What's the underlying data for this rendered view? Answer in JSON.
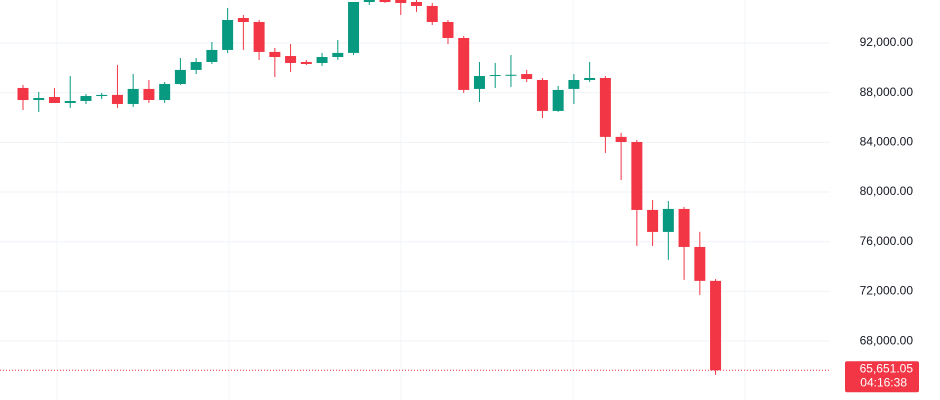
{
  "chart_data": {
    "type": "candlestick",
    "up_color": "#089981",
    "down_color": "#f23645",
    "grid": true,
    "ylim": [
      63260,
      95460
    ],
    "yticks": [
      {
        "value": 68000,
        "label": "68,000.00"
      },
      {
        "value": 72000,
        "label": "72,000.00"
      },
      {
        "value": 76000,
        "label": "76,000.00"
      },
      {
        "value": 80000,
        "label": "80,000.00"
      },
      {
        "value": 84000,
        "label": "84,000.00"
      },
      {
        "value": 88000,
        "label": "88,000.00"
      },
      {
        "value": 92000,
        "label": "92,000.00"
      }
    ],
    "open": [
      88380,
      87410,
      87650,
      87170,
      87330,
      87730,
      87820,
      87090,
      88300,
      87410,
      88700,
      89830,
      90470,
      91440,
      94010,
      93690,
      91280,
      90950,
      90470,
      90390,
      90870,
      91200,
      95300,
      95700,
      95500,
      95300,
      94980,
      93690,
      92400,
      88300,
      89340,
      89420,
      89500,
      89020,
      86530,
      88300,
      89020,
      89180,
      84440,
      84030,
      78560,
      76790,
      78640,
      75580,
      72850
    ],
    "high": [
      88620,
      88060,
      88380,
      89340,
      87900,
      87980,
      90230,
      89500,
      89020,
      88860,
      90790,
      90790,
      92080,
      94820,
      94250,
      93850,
      91600,
      91920,
      90630,
      91200,
      92240,
      95300,
      96200,
      96000,
      96100,
      95700,
      95220,
      93850,
      92560,
      90470,
      90390,
      91030,
      89830,
      89180,
      88540,
      89500,
      90470,
      89340,
      84760,
      84190,
      79360,
      79280,
      78800,
      76800,
      73010
    ],
    "low": [
      86610,
      86450,
      87170,
      86770,
      87090,
      87490,
      86770,
      86850,
      87170,
      87170,
      88620,
      89500,
      90310,
      91200,
      91440,
      90630,
      89260,
      89670,
      90230,
      90150,
      90630,
      91030,
      95060,
      95220,
      94250,
      94500,
      93450,
      91920,
      87980,
      87250,
      88380,
      88460,
      88860,
      85960,
      86450,
      87090,
      88860,
      83150,
      80970,
      75660,
      75660,
      74540,
      72930,
      71720,
      65280
    ],
    "close": [
      87410,
      87570,
      87170,
      87330,
      87730,
      87820,
      87090,
      88300,
      87410,
      88700,
      89830,
      90470,
      91440,
      93850,
      93690,
      91280,
      90870,
      90390,
      90310,
      90870,
      91200,
      95300,
      95700,
      95300,
      95220,
      94980,
      93690,
      92400,
      88220,
      89340,
      89420,
      89440,
      89100,
      86530,
      88220,
      89020,
      89180,
      84440,
      84030,
      78560,
      76790,
      78640,
      75580,
      72850,
      65651.05
    ],
    "last_price": {
      "value": 65651.05,
      "label": "65,651.05"
    },
    "countdown": "04:16:38"
  }
}
